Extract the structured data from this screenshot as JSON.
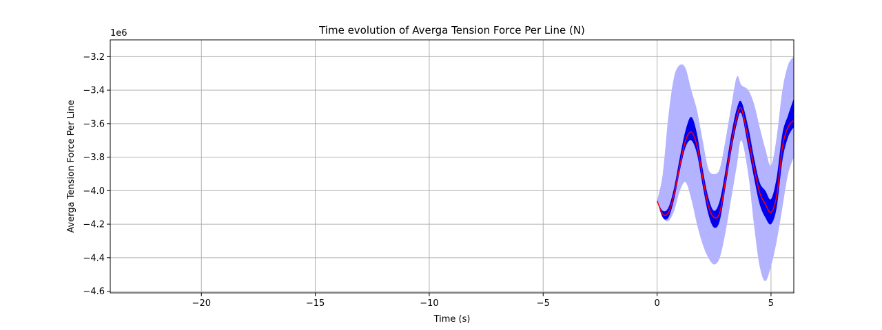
{
  "chart_data": {
    "type": "area",
    "title": "Time evolution of Averga Tension Force Per Line (N)",
    "xlabel": "Time (s)",
    "ylabel": "Averga Tension Force Per Line",
    "offset_label": "1e6",
    "xlim": [
      -24,
      6
    ],
    "ylim": [
      -4.61,
      -3.1
    ],
    "x_ticks": [
      -20,
      -15,
      -10,
      -5,
      0,
      5
    ],
    "x_tick_labels": [
      "−20",
      "−15",
      "−10",
      "−5",
      "0",
      "5"
    ],
    "y_ticks": [
      -4.6,
      -4.4,
      -4.2,
      -4.0,
      -3.8,
      -3.6,
      -3.4,
      -3.2
    ],
    "y_tick_labels": [
      "−4.6",
      "−4.4",
      "−4.2",
      "−4.0",
      "−3.8",
      "−3.6",
      "−3.4",
      "−3.2"
    ],
    "grid": true,
    "colors": {
      "outer_band": "#b3b3ff",
      "inner_band": "#0000ee",
      "mean_line": "#ff0000"
    },
    "x": [
      0.0,
      0.25,
      0.5,
      0.75,
      1.0,
      1.25,
      1.5,
      1.75,
      2.0,
      2.25,
      2.5,
      2.75,
      3.0,
      3.25,
      3.5,
      3.7,
      4.0,
      4.25,
      4.5,
      4.75,
      5.0,
      5.25,
      5.5,
      5.75,
      6.0
    ],
    "mean": [
      -4.06,
      -4.14,
      -4.13,
      -4.02,
      -3.85,
      -3.7,
      -3.65,
      -3.73,
      -3.92,
      -4.09,
      -4.16,
      -4.13,
      -3.94,
      -3.73,
      -3.56,
      -3.51,
      -3.69,
      -3.86,
      -4.01,
      -4.08,
      -4.13,
      -4.03,
      -3.74,
      -3.62,
      -3.58
    ],
    "inner_lower": [
      -4.06,
      -4.16,
      -4.16,
      -4.05,
      -3.88,
      -3.74,
      -3.7,
      -3.78,
      -3.97,
      -4.14,
      -4.22,
      -4.18,
      -3.98,
      -3.77,
      -3.6,
      -3.54,
      -3.74,
      -3.92,
      -4.08,
      -4.16,
      -4.2,
      -4.1,
      -3.82,
      -3.68,
      -3.62
    ],
    "inner_upper": [
      -4.06,
      -4.12,
      -4.1,
      -3.98,
      -3.8,
      -3.64,
      -3.56,
      -3.66,
      -3.87,
      -4.04,
      -4.12,
      -4.06,
      -3.88,
      -3.67,
      -3.51,
      -3.47,
      -3.62,
      -3.8,
      -3.95,
      -4.0,
      -4.05,
      -3.92,
      -3.66,
      -3.55,
      -3.45
    ],
    "outer_lower": [
      -4.06,
      -4.16,
      -4.18,
      -4.12,
      -4.0,
      -3.95,
      -4.05,
      -4.2,
      -4.32,
      -4.4,
      -4.44,
      -4.4,
      -4.25,
      -4.05,
      -3.85,
      -3.7,
      -3.9,
      -4.2,
      -4.45,
      -4.54,
      -4.45,
      -4.3,
      -4.1,
      -3.9,
      -3.8
    ],
    "outer_upper": [
      -4.06,
      -3.9,
      -3.55,
      -3.32,
      -3.25,
      -3.27,
      -3.4,
      -3.52,
      -3.7,
      -3.87,
      -3.9,
      -3.87,
      -3.7,
      -3.5,
      -3.32,
      -3.37,
      -3.4,
      -3.48,
      -3.62,
      -3.75,
      -3.85,
      -3.68,
      -3.4,
      -3.25,
      -3.2
    ]
  }
}
